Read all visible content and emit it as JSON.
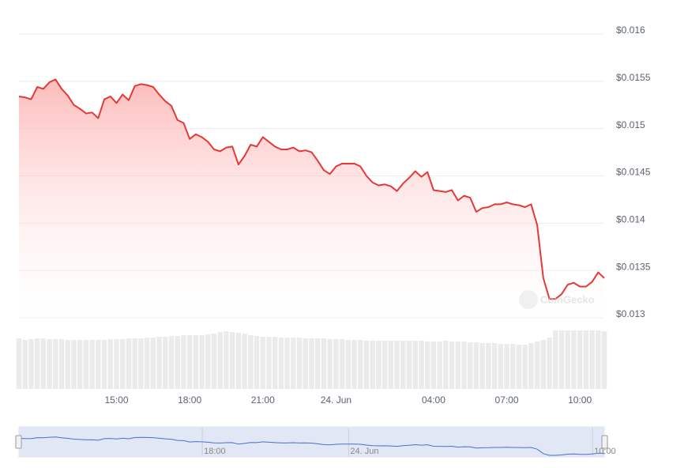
{
  "chart_data": {
    "type": "line",
    "watermark": "CoinGecko",
    "x": [
      11,
      11.25,
      11.5,
      11.75,
      12,
      12.25,
      12.5,
      12.75,
      13,
      13.25,
      13.5,
      13.75,
      14,
      14.25,
      14.5,
      14.75,
      15,
      15.25,
      15.5,
      15.75,
      16,
      16.25,
      16.5,
      16.75,
      17,
      17.25,
      17.5,
      17.75,
      18,
      18.25,
      18.5,
      18.75,
      19,
      19.25,
      19.5,
      19.75,
      20,
      20.25,
      20.5,
      20.75,
      21,
      21.25,
      21.5,
      21.75,
      22,
      22.25,
      22.5,
      22.75,
      23,
      23.25,
      23.5,
      23.75,
      24,
      24.25,
      24.5,
      24.75,
      25,
      25.25,
      25.5,
      25.75,
      26,
      26.25,
      26.5,
      26.75,
      27,
      27.25,
      27.5,
      27.75,
      28,
      28.25,
      28.5,
      28.75,
      29,
      29.25,
      29.5,
      29.75,
      30,
      30.25,
      30.5,
      30.75,
      31,
      31.25,
      31.5,
      31.75,
      32,
      32.25,
      32.5,
      32.75,
      33,
      33.25,
      33.5,
      33.75,
      34,
      34.25,
      34.5,
      34.75,
      35
    ],
    "series": [
      {
        "name": "Price",
        "color": "#e53935",
        "values": [
          0.01534,
          0.01533,
          0.01531,
          0.01544,
          0.01542,
          0.01549,
          0.01552,
          0.01542,
          0.01535,
          0.01525,
          0.01521,
          0.01516,
          0.01517,
          0.01511,
          0.01531,
          0.01534,
          0.01527,
          0.01536,
          0.0153,
          0.01545,
          0.01547,
          0.01546,
          0.01544,
          0.01536,
          0.01529,
          0.01524,
          0.01509,
          0.01506,
          0.01489,
          0.01494,
          0.01491,
          0.01486,
          0.01478,
          0.01476,
          0.0148,
          0.01481,
          0.01462,
          0.01471,
          0.01483,
          0.01481,
          0.01491,
          0.01486,
          0.01481,
          0.01478,
          0.01478,
          0.0148,
          0.01476,
          0.01477,
          0.01475,
          0.01466,
          0.01456,
          0.01452,
          0.0146,
          0.01463,
          0.01463,
          0.01463,
          0.0146,
          0.0145,
          0.01443,
          0.0144,
          0.01441,
          0.01439,
          0.01434,
          0.01442,
          0.01448,
          0.01455,
          0.01449,
          0.01454,
          0.01435,
          0.01434,
          0.01433,
          0.01435,
          0.01424,
          0.01429,
          0.01427,
          0.01412,
          0.01416,
          0.01417,
          0.0142,
          0.0142,
          0.01422,
          0.0142,
          0.01419,
          0.01417,
          0.0142,
          0.01398,
          0.01342,
          0.0132,
          0.0132,
          0.01325,
          0.01335,
          0.01337,
          0.01333,
          0.01333,
          0.01338,
          0.01348,
          0.01342
        ]
      },
      {
        "name": "Volume",
        "color": "#ebebeb",
        "values": [
          64,
          62,
          63,
          64,
          64,
          63,
          63,
          63,
          62,
          62,
          62,
          62,
          62,
          62,
          62,
          63,
          63,
          63,
          64,
          64,
          64,
          65,
          65,
          66,
          66,
          67,
          67,
          68,
          68,
          68,
          68,
          69,
          70,
          72,
          73,
          72,
          71,
          70,
          68,
          67,
          66,
          66,
          66,
          65,
          65,
          65,
          65,
          64,
          64,
          64,
          64,
          63,
          63,
          63,
          62,
          62,
          62,
          61,
          61,
          61,
          61,
          61,
          61,
          61,
          61,
          61,
          61,
          60,
          60,
          60,
          61,
          60,
          60,
          60,
          59,
          59,
          58,
          58,
          58,
          57,
          57,
          57,
          56,
          56,
          58,
          60,
          62,
          65,
          74,
          74,
          74,
          74,
          74,
          74,
          74,
          74,
          73
        ]
      }
    ],
    "xlim": [
      11,
      35
    ],
    "xticks": [
      {
        "value": 15,
        "label": "15:00"
      },
      {
        "value": 18,
        "label": "18:00"
      },
      {
        "value": 21,
        "label": "21:00"
      },
      {
        "value": 24,
        "label": "24. Jun"
      },
      {
        "value": 28,
        "label": "04:00"
      },
      {
        "value": 31,
        "label": "07:00"
      },
      {
        "value": 34,
        "label": "10:00"
      }
    ],
    "ylim": [
      0.013,
      0.016
    ],
    "yticks": [
      {
        "value": 0.013,
        "label": "$0.013"
      },
      {
        "value": 0.0135,
        "label": "$0.0135"
      },
      {
        "value": 0.014,
        "label": "$0.014"
      },
      {
        "value": 0.0145,
        "label": "$0.0145"
      },
      {
        "value": 0.015,
        "label": "$0.015"
      },
      {
        "value": 0.0155,
        "label": "$0.0155"
      },
      {
        "value": 0.016,
        "label": "$0.016"
      }
    ],
    "grid": true
  }
}
